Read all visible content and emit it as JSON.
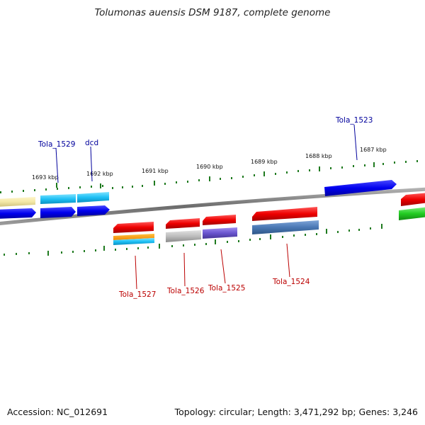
{
  "title": "Tolumonas auensis DSM 9187, complete genome",
  "footer": {
    "accession": "Accession: NC_012691",
    "stats": "Topology: circular; Length: 3,471,292 bp; Genes: 3,246"
  },
  "ticks": [
    "1693 kbp",
    "1692 kbp",
    "1691 kbp",
    "1690 kbp",
    "1689 kbp",
    "1688 kbp",
    "1687 kbp"
  ],
  "gene_labels": {
    "top": [
      "Tola_1529",
      "dcd",
      "Tola_1523"
    ],
    "bottom": [
      "Tola_1527",
      "Tola_1526",
      "Tola_1525",
      "Tola_1524"
    ]
  },
  "colors": {
    "blue_label": "#00009c",
    "red_label": "#bb0000",
    "axis": "#777777",
    "tick": "#1f7a1f"
  }
}
